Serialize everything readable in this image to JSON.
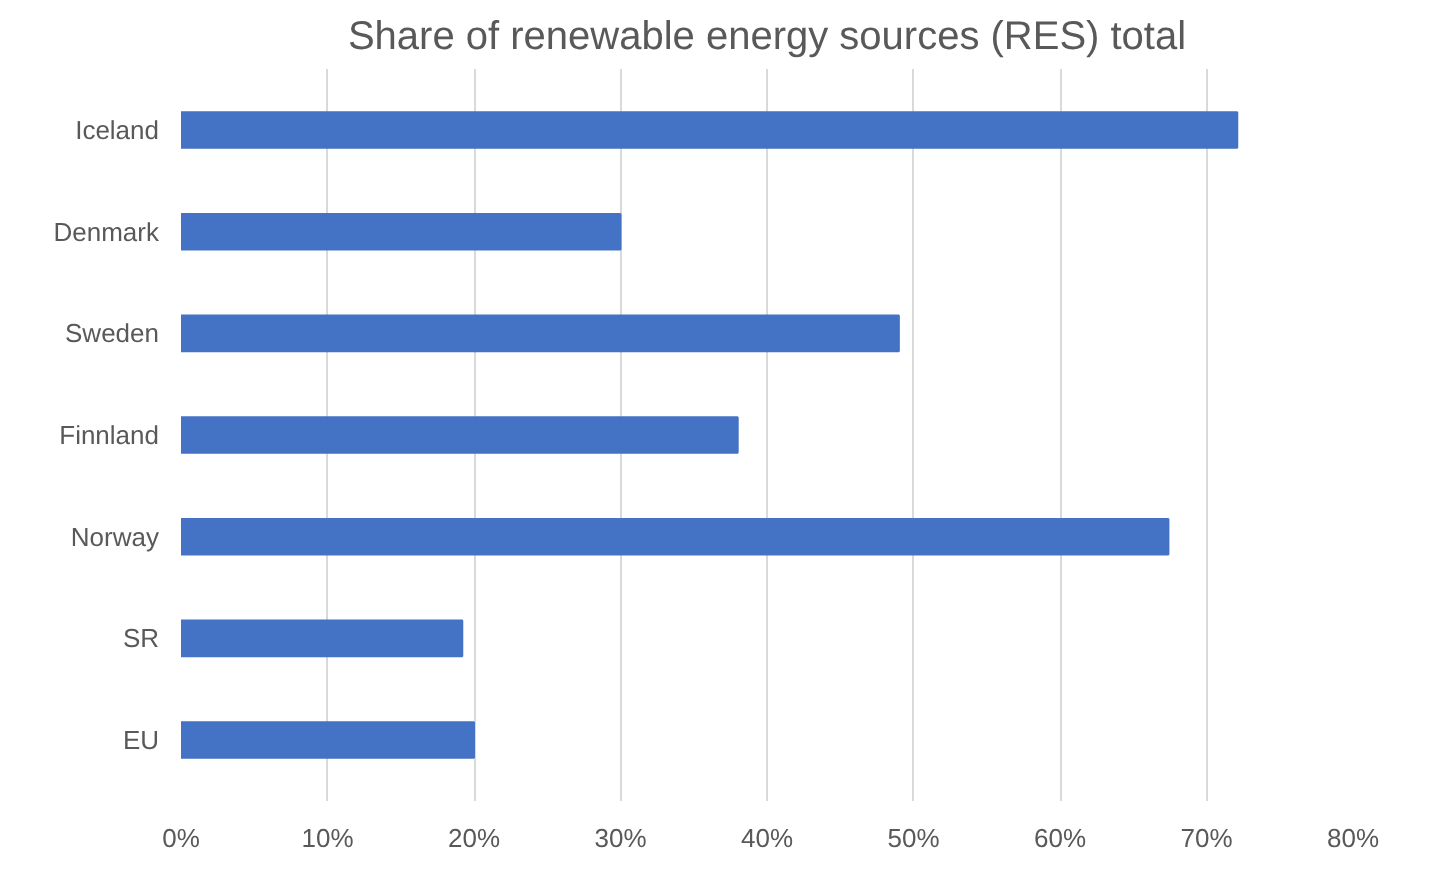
{
  "chart_data": {
    "type": "bar",
    "orientation": "horizontal",
    "title": "Share of renewable energy sources (RES) total",
    "categories": [
      "Iceland",
      "Denmark",
      "Sweden",
      "Finnland",
      "Norway",
      "SR",
      "EU"
    ],
    "values": [
      72.1,
      30,
      49,
      38,
      67.4,
      19.2,
      20
    ],
    "color": "#4472c4",
    "xlim": [
      0,
      80
    ],
    "xticks": [
      {
        "value": 0,
        "label": "0%"
      },
      {
        "value": 10,
        "label": "10%"
      },
      {
        "value": 20,
        "label": "20%"
      },
      {
        "value": 30,
        "label": "30%"
      },
      {
        "value": 40,
        "label": "40%"
      },
      {
        "value": 50,
        "label": "50%"
      },
      {
        "value": 60,
        "label": "60%"
      },
      {
        "value": 70,
        "label": "70%"
      },
      {
        "value": 80,
        "label": "80%"
      }
    ],
    "grid": "x"
  }
}
